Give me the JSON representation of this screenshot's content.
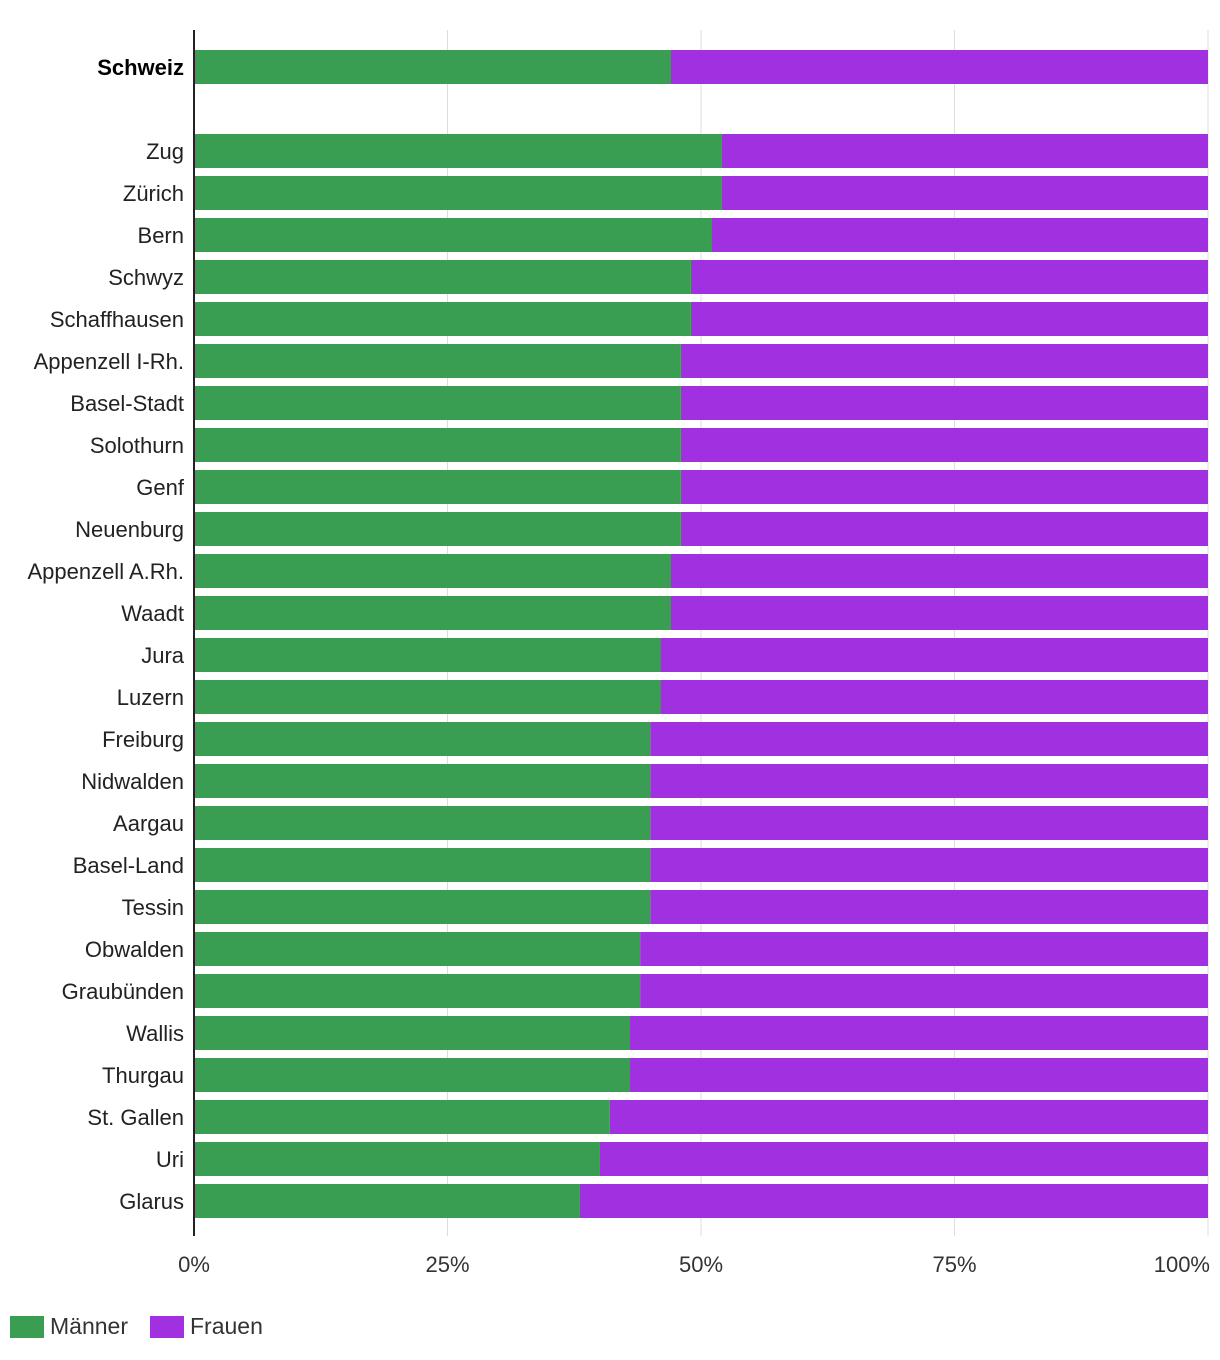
{
  "chart_data": {
    "type": "bar",
    "orientation": "horizontal",
    "stacked": true,
    "title": "",
    "xlabel": "",
    "ylabel": "",
    "xlim": [
      0,
      100
    ],
    "x_ticks": [
      "0%",
      "25%",
      "50%",
      "75%",
      "100%"
    ],
    "grid": true,
    "legend_position": "bottom-left",
    "highlighted_category": "Schweiz",
    "categories": [
      "Schweiz",
      "Zug",
      "Zürich",
      "Bern",
      "Schwyz",
      "Schaffhausen",
      "Appenzell I-Rh.",
      "Basel-Stadt",
      "Solothurn",
      "Genf",
      "Neuenburg",
      "Appenzell A.Rh.",
      "Waadt",
      "Jura",
      "Luzern",
      "Freiburg",
      "Nidwalden",
      "Aargau",
      "Basel-Land",
      "Tessin",
      "Obwalden",
      "Graubünden",
      "Wallis",
      "Thurgau",
      "St. Gallen",
      "Uri",
      "Glarus"
    ],
    "series": [
      {
        "name": "Männer",
        "color": "#3a9e52",
        "values": [
          47,
          52,
          52,
          51,
          49,
          49,
          48,
          48,
          48,
          48,
          48,
          47,
          47,
          46,
          46,
          45,
          45,
          45,
          45,
          45,
          44,
          44,
          43,
          43,
          41,
          40,
          38
        ]
      },
      {
        "name": "Frauen",
        "color": "#a030e0",
        "values": [
          53,
          48,
          48,
          49,
          51,
          51,
          52,
          52,
          52,
          52,
          52,
          53,
          53,
          54,
          54,
          55,
          55,
          55,
          55,
          55,
          56,
          56,
          57,
          57,
          59,
          60,
          62
        ]
      }
    ]
  }
}
